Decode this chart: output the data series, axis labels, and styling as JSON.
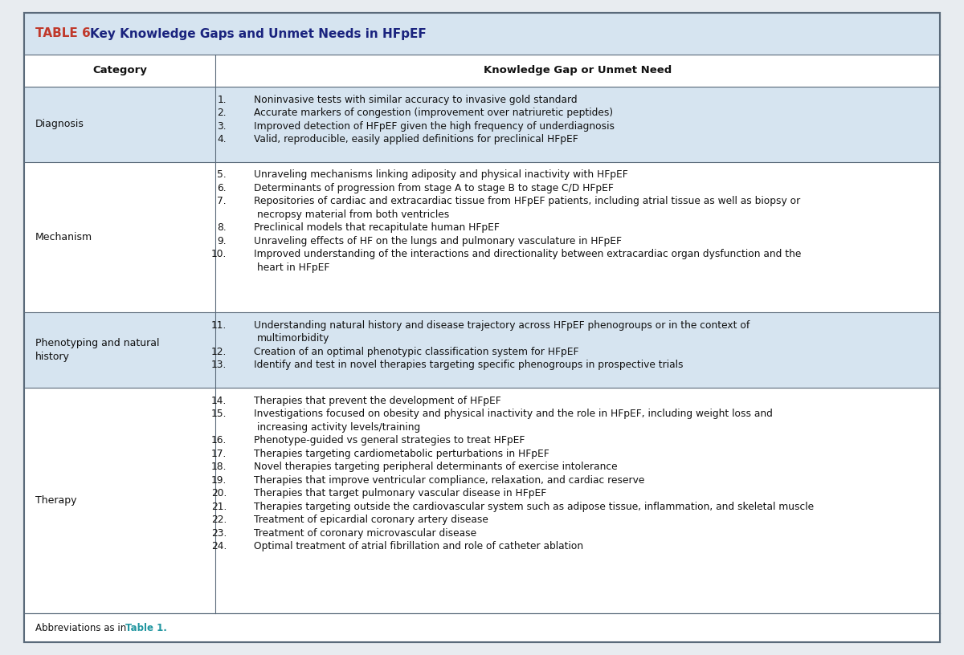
{
  "title_prefix": "TABLE 6",
  "title_text": "Key Knowledge Gaps and Unmet Needs in HFpEF",
  "col1_header": "Category",
  "col2_header": "Knowledge Gap or Unmet Need",
  "header_bg": "#d6e4f0",
  "row_bg_alt": "#d6e4f0",
  "row_bg_white": "#ffffff",
  "outer_bg": "#f0f4f8",
  "border_color": "#5a6a7a",
  "title_color_prefix": "#c0392b",
  "title_color_rest": "#1a237e",
  "text_color": "#111111",
  "footer_link_color": "#2196a0",
  "footer_link_text": "Table 1.",
  "footer_prefix": "Abbreviations as in ",
  "rows": [
    {
      "category": "Diagnosis",
      "category_lines": [
        "Diagnosis"
      ],
      "items": [
        [
          "1.",
          "Noninvasive tests with similar accuracy to invasive gold standard"
        ],
        [
          "2.",
          "Accurate markers of congestion (improvement over natriuretic peptides)"
        ],
        [
          "3.",
          "Improved detection of HFpEF given the high frequency of underdiagnosis"
        ],
        [
          "4.",
          "Valid, reproducible, easily applied definitions for preclinical HFpEF"
        ]
      ],
      "item_wraps": [
        1,
        1,
        1,
        1
      ],
      "shaded": true
    },
    {
      "category": "Mechanism",
      "category_lines": [
        "Mechanism"
      ],
      "items": [
        [
          "5.",
          "Unraveling mechanisms linking adiposity and physical inactivity with HFpEF"
        ],
        [
          "6.",
          "Determinants of progression from stage A to stage B to stage C/D HFpEF"
        ],
        [
          "7.",
          "Repositories of cardiac and extracardiac tissue from HFpEF patients, including atrial tissue as well as biopsy or"
        ],
        [
          "",
          "necropsy material from both ventricles"
        ],
        [
          "8.",
          "Preclinical models that recapitulate human HFpEF"
        ],
        [
          "9.",
          "Unraveling effects of HF on the lungs and pulmonary vasculature in HFpEF"
        ],
        [
          "10.",
          "Improved understanding of the interactions and directionality between extracardiac organ dysfunction and the"
        ],
        [
          "",
          "heart in HFpEF"
        ]
      ],
      "shaded": false
    },
    {
      "category": "Phenotyping and natural",
      "category_lines": [
        "Phenotyping and natural",
        "history"
      ],
      "items": [
        [
          "11.",
          "Understanding natural history and disease trajectory across HFpEF phenogroups or in the context of"
        ],
        [
          "",
          "multimorbidity"
        ],
        [
          "12.",
          "Creation of an optimal phenotypic classification system for HFpEF"
        ],
        [
          "13.",
          "Identify and test in novel therapies targeting specific phenogroups in prospective trials"
        ]
      ],
      "shaded": true
    },
    {
      "category": "Therapy",
      "category_lines": [
        "Therapy"
      ],
      "items": [
        [
          "14.",
          "Therapies that prevent the development of HFpEF"
        ],
        [
          "15.",
          "Investigations focused on obesity and physical inactivity and the role in HFpEF, including weight loss and"
        ],
        [
          "",
          "increasing activity levels/training"
        ],
        [
          "16.",
          "Phenotype-guided vs general strategies to treat HFpEF"
        ],
        [
          "17.",
          "Therapies targeting cardiometabolic perturbations in HFpEF"
        ],
        [
          "18.",
          "Novel therapies targeting peripheral determinants of exercise intolerance"
        ],
        [
          "19.",
          "Therapies that improve ventricular compliance, relaxation, and cardiac reserve"
        ],
        [
          "20.",
          "Therapies that target pulmonary vascular disease in HFpEF"
        ],
        [
          "21.",
          "Therapies targeting outside the cardiovascular system such as adipose tissue, inflammation, and skeletal muscle"
        ],
        [
          "22.",
          "Treatment of epicardial coronary artery disease"
        ],
        [
          "23.",
          "Treatment of coronary microvascular disease"
        ],
        [
          "24.",
          "Optimal treatment of atrial fibrillation and role of catheter ablation"
        ]
      ],
      "shaded": false
    }
  ]
}
